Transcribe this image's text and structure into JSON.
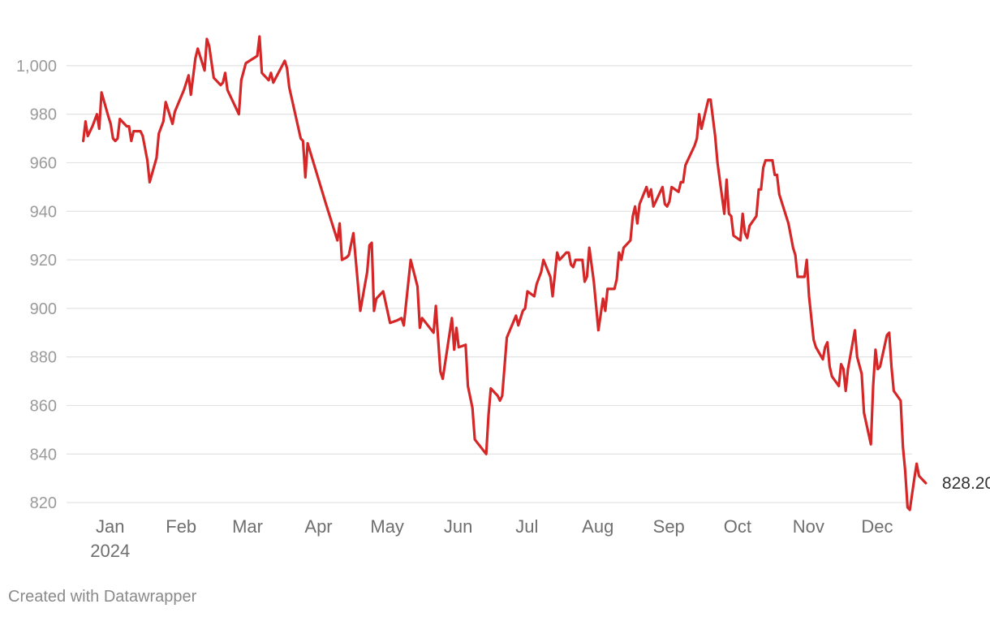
{
  "chart_data": {
    "type": "line",
    "title": "",
    "xlabel": "",
    "ylabel": "",
    "ylim": [
      814,
      1014
    ],
    "xlim": [
      -7,
      363
    ],
    "grid": true,
    "y_ticks": [
      {
        "value": 820,
        "label": "820"
      },
      {
        "value": 840,
        "label": "840"
      },
      {
        "value": 860,
        "label": "860"
      },
      {
        "value": 880,
        "label": "880"
      },
      {
        "value": 900,
        "label": "900"
      },
      {
        "value": 920,
        "label": "920"
      },
      {
        "value": 940,
        "label": "940"
      },
      {
        "value": 960,
        "label": "960"
      },
      {
        "value": 980,
        "label": "980"
      },
      {
        "value": 1000,
        "label": "1,000"
      }
    ],
    "x_ticks": [
      {
        "value": 0,
        "label": "Jan",
        "sublabel": "2024"
      },
      {
        "value": 31,
        "label": "Feb"
      },
      {
        "value": 60,
        "label": "Mar"
      },
      {
        "value": 91,
        "label": "Apr"
      },
      {
        "value": 121,
        "label": "May"
      },
      {
        "value": 152,
        "label": "Jun"
      },
      {
        "value": 182,
        "label": "Jul"
      },
      {
        "value": 213,
        "label": "Aug"
      },
      {
        "value": 244,
        "label": "Sep"
      },
      {
        "value": 274,
        "label": "Oct"
      },
      {
        "value": 305,
        "label": "Nov"
      },
      {
        "value": 335,
        "label": "Dec"
      }
    ],
    "series": [
      {
        "color": "#d62728",
        "end_label": "828.208",
        "points": [
          [
            1,
            969
          ],
          [
            2,
            977
          ],
          [
            3,
            971
          ],
          [
            5,
            975
          ],
          [
            7,
            980
          ],
          [
            8,
            974
          ],
          [
            9,
            989
          ],
          [
            12,
            979
          ],
          [
            13,
            976
          ],
          [
            14,
            970
          ],
          [
            15,
            969
          ],
          [
            16,
            970
          ],
          [
            17,
            978
          ],
          [
            20,
            975
          ],
          [
            21,
            975
          ],
          [
            22,
            969
          ],
          [
            23,
            973
          ],
          [
            26,
            973
          ],
          [
            27,
            971
          ],
          [
            29,
            961
          ],
          [
            30,
            952
          ],
          [
            33,
            962
          ],
          [
            34,
            972
          ],
          [
            36,
            977
          ],
          [
            37,
            985
          ],
          [
            40,
            976
          ],
          [
            41,
            981
          ],
          [
            45,
            990
          ],
          [
            47,
            996
          ],
          [
            48,
            988
          ],
          [
            50,
            1003
          ],
          [
            51,
            1007
          ],
          [
            54,
            998
          ],
          [
            55,
            1011
          ],
          [
            56,
            1008
          ],
          [
            58,
            995
          ],
          [
            61,
            992
          ],
          [
            62,
            993
          ],
          [
            63,
            997
          ],
          [
            64,
            990
          ],
          [
            69,
            980
          ],
          [
            70,
            994
          ],
          [
            72,
            1001
          ],
          [
            77,
            1004
          ],
          [
            78,
            1012
          ],
          [
            79,
            997
          ],
          [
            82,
            994
          ],
          [
            83,
            997
          ],
          [
            84,
            993
          ],
          [
            89,
            1002
          ],
          [
            90,
            999
          ],
          [
            91,
            991
          ],
          [
            96,
            970
          ],
          [
            97,
            969
          ],
          [
            98,
            954
          ],
          [
            99,
            968
          ],
          [
            107,
            943
          ],
          [
            111,
            931
          ],
          [
            112,
            928
          ],
          [
            113,
            935
          ],
          [
            114,
            920
          ],
          [
            116,
            921
          ],
          [
            117,
            922
          ],
          [
            119,
            931
          ],
          [
            122,
            899
          ],
          [
            125,
            915
          ],
          [
            126,
            926
          ],
          [
            127,
            927
          ],
          [
            128,
            899
          ],
          [
            129,
            904
          ],
          [
            132,
            907
          ],
          [
            135,
            894
          ],
          [
            138,
            895
          ],
          [
            140,
            896
          ],
          [
            141,
            893
          ],
          [
            144,
            920
          ],
          [
            147,
            909
          ],
          [
            148,
            892
          ],
          [
            149,
            896
          ],
          [
            154,
            890
          ],
          [
            155,
            901
          ],
          [
            157,
            874
          ],
          [
            158,
            871
          ],
          [
            162,
            896
          ],
          [
            163,
            883
          ],
          [
            164,
            892
          ],
          [
            165,
            884
          ],
          [
            168,
            885
          ],
          [
            169,
            868
          ],
          [
            171,
            859
          ],
          [
            172,
            846
          ],
          [
            177,
            840
          ],
          [
            178,
            856
          ],
          [
            179,
            867
          ],
          [
            182,
            864
          ],
          [
            183,
            862
          ],
          [
            184,
            864
          ],
          [
            186,
            888
          ],
          [
            190,
            897
          ],
          [
            191,
            893
          ],
          [
            193,
            899
          ],
          [
            194,
            900
          ],
          [
            195,
            907
          ],
          [
            198,
            905
          ],
          [
            199,
            910
          ],
          [
            201,
            915
          ],
          [
            202,
            920
          ],
          [
            205,
            913
          ],
          [
            206,
            905
          ],
          [
            208,
            923
          ],
          [
            209,
            920
          ],
          [
            211,
            922
          ],
          [
            212,
            923
          ],
          [
            213,
            923
          ],
          [
            214,
            918
          ],
          [
            215,
            917
          ],
          [
            216,
            920
          ],
          [
            219,
            920
          ],
          [
            220,
            911
          ],
          [
            221,
            913
          ],
          [
            222,
            925
          ],
          [
            224,
            911
          ],
          [
            226,
            891
          ],
          [
            228,
            904
          ],
          [
            229,
            899
          ],
          [
            230,
            908
          ],
          [
            233,
            908
          ],
          [
            234,
            912
          ],
          [
            235,
            923
          ],
          [
            236,
            920
          ],
          [
            237,
            925
          ],
          [
            240,
            928
          ],
          [
            241,
            938
          ],
          [
            242,
            942
          ],
          [
            243,
            935
          ],
          [
            244,
            943
          ],
          [
            247,
            950
          ],
          [
            248,
            946
          ],
          [
            249,
            949
          ],
          [
            250,
            942
          ],
          [
            254,
            950
          ],
          [
            255,
            943
          ],
          [
            256,
            942
          ],
          [
            257,
            944
          ],
          [
            258,
            950
          ],
          [
            261,
            948
          ],
          [
            262,
            952
          ],
          [
            263,
            952
          ],
          [
            264,
            959
          ],
          [
            268,
            967
          ],
          [
            269,
            970
          ],
          [
            270,
            980
          ],
          [
            271,
            974
          ],
          [
            274,
            986
          ],
          [
            275,
            986
          ],
          [
            277,
            971
          ],
          [
            278,
            960
          ],
          [
            281,
            939
          ],
          [
            282,
            953
          ],
          [
            283,
            939
          ],
          [
            284,
            938
          ],
          [
            285,
            930
          ],
          [
            288,
            928
          ],
          [
            289,
            939
          ],
          [
            290,
            931
          ],
          [
            291,
            929
          ],
          [
            292,
            934
          ],
          [
            295,
            938
          ],
          [
            296,
            949
          ],
          [
            297,
            949
          ],
          [
            298,
            958
          ],
          [
            299,
            961
          ],
          [
            302,
            961
          ],
          [
            303,
            955
          ],
          [
            304,
            955
          ],
          [
            305,
            947
          ],
          [
            309,
            935
          ],
          [
            310,
            930
          ],
          [
            311,
            925
          ],
          [
            312,
            922
          ],
          [
            313,
            913
          ],
          [
            316,
            913
          ],
          [
            317,
            920
          ],
          [
            318,
            905
          ],
          [
            320,
            887
          ],
          [
            321,
            884
          ],
          [
            324,
            879
          ],
          [
            325,
            884
          ],
          [
            326,
            886
          ],
          [
            327,
            876
          ],
          [
            328,
            872
          ],
          [
            331,
            868
          ],
          [
            332,
            877
          ],
          [
            333,
            875
          ],
          [
            334,
            866
          ],
          [
            335,
            875
          ],
          [
            338,
            891
          ],
          [
            339,
            880
          ],
          [
            341,
            873
          ],
          [
            342,
            857
          ],
          [
            345,
            844
          ],
          [
            346,
            868
          ],
          [
            347,
            883
          ],
          [
            348,
            875
          ],
          [
            349,
            876
          ],
          [
            352,
            889
          ],
          [
            353,
            890
          ],
          [
            354,
            876
          ],
          [
            355,
            866
          ],
          [
            358,
            862
          ],
          [
            359,
            843
          ],
          [
            360,
            833
          ],
          [
            361,
            818
          ],
          [
            362,
            817
          ],
          [
            364,
            830
          ],
          [
            365,
            836
          ],
          [
            366,
            831
          ],
          [
            369,
            828
          ]
        ]
      }
    ]
  },
  "footer": {
    "credit": "Created with Datawrapper"
  }
}
